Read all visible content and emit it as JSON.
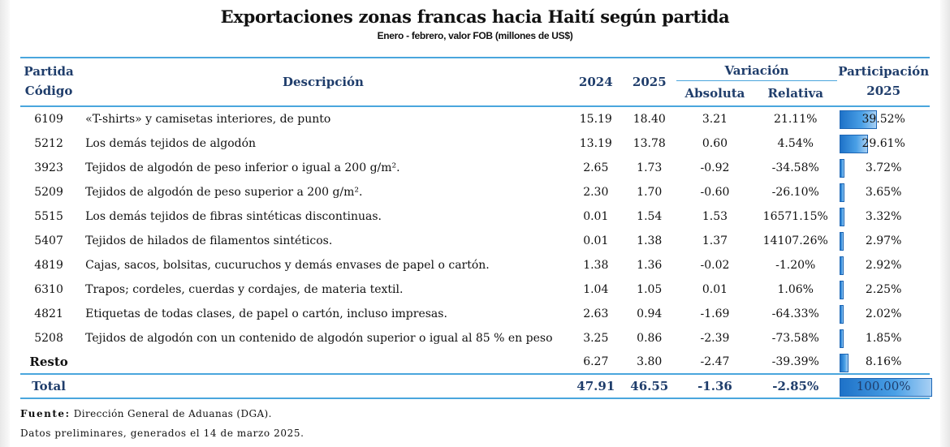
{
  "title": "Exportaciones zonas francas hacia Haití según partida",
  "subtitle": "Enero - febrero, valor FOB (millones de US$)",
  "headers": {
    "partida": "Partida",
    "codigo": "Código",
    "descripcion": "Descripción",
    "y2024": "2024",
    "y2025": "2025",
    "variacion": "Variación",
    "absoluta": "Absoluta",
    "relativa": "Relativa",
    "participacion": "Participación",
    "part_year": "2025"
  },
  "rows": [
    {
      "code": "6109",
      "desc": "«T-shirts» y camisetas interiores, de punto",
      "y2024": "15.19",
      "y2025": "18.40",
      "abs": "3.21",
      "rel": "21.11%",
      "part": "39.52%",
      "share": 0.3952
    },
    {
      "code": "5212",
      "desc": "Los demás tejidos de algodón",
      "y2024": "13.19",
      "y2025": "13.78",
      "abs": "0.60",
      "rel": "4.54%",
      "part": "29.61%",
      "share": 0.2961
    },
    {
      "code": "3923",
      "desc": "Tejidos de algodón de peso inferior o igual a 200 g/m².",
      "y2024": "2.65",
      "y2025": "1.73",
      "abs": "-0.92",
      "rel": "-34.58%",
      "part": "3.72%",
      "share": 0.0372
    },
    {
      "code": "5209",
      "desc": "Tejidos de algodón de peso superior a 200 g/m².",
      "y2024": "2.30",
      "y2025": "1.70",
      "abs": "-0.60",
      "rel": "-26.10%",
      "part": "3.65%",
      "share": 0.0365
    },
    {
      "code": "5515",
      "desc": "Los demás tejidos de fibras sintéticas discontinuas.",
      "y2024": "0.01",
      "y2025": "1.54",
      "abs": "1.53",
      "rel": "16571.15%",
      "part": "3.32%",
      "share": 0.0332
    },
    {
      "code": "5407",
      "desc": "Tejidos de hilados de filamentos sintéticos.",
      "y2024": "0.01",
      "y2025": "1.38",
      "abs": "1.37",
      "rel": "14107.26%",
      "part": "2.97%",
      "share": 0.0297
    },
    {
      "code": "4819",
      "desc": "Cajas, sacos, bolsitas, cucuruchos y demás envases de papel o cartón.",
      "y2024": "1.38",
      "y2025": "1.36",
      "abs": "-0.02",
      "rel": "-1.20%",
      "part": "2.92%",
      "share": 0.0292
    },
    {
      "code": "6310",
      "desc": "Trapos; cordeles, cuerdas y cordajes, de materia textil.",
      "y2024": "1.04",
      "y2025": "1.05",
      "abs": "0.01",
      "rel": "1.06%",
      "part": "2.25%",
      "share": 0.0225
    },
    {
      "code": "4821",
      "desc": "Etiquetas de todas clases, de papel o cartón, incluso impresas.",
      "y2024": "2.63",
      "y2025": "0.94",
      "abs": "-1.69",
      "rel": "-64.33%",
      "part": "2.02%",
      "share": 0.0202
    },
    {
      "code": "5208",
      "desc": "Tejidos de algodón con un contenido de algodón superior o igual al 85 % en peso",
      "y2024": "3.25",
      "y2025": "0.86",
      "abs": "-2.39",
      "rel": "-73.58%",
      "part": "1.85%",
      "share": 0.0185
    }
  ],
  "resto": {
    "label": "Resto",
    "y2024": "6.27",
    "y2025": "3.80",
    "abs": "-2.47",
    "rel": "-39.39%",
    "part": "8.16%",
    "share": 0.0816
  },
  "total": {
    "label": "Total",
    "y2024": "47.91",
    "y2025": "46.55",
    "abs": "-1.36",
    "rel": "-2.85%",
    "part": "100.00%",
    "share": 1.0
  },
  "footer": {
    "fuente_label": "Fuente:",
    "fuente_text": "Dirección General de Aduanas (DGA).",
    "note": "Datos preliminares, generados el 14 de marzo 2025."
  },
  "colors": {
    "accent": "#4aa6dd",
    "bar": "#1e72c8",
    "header_text": "#1f3d6b"
  }
}
